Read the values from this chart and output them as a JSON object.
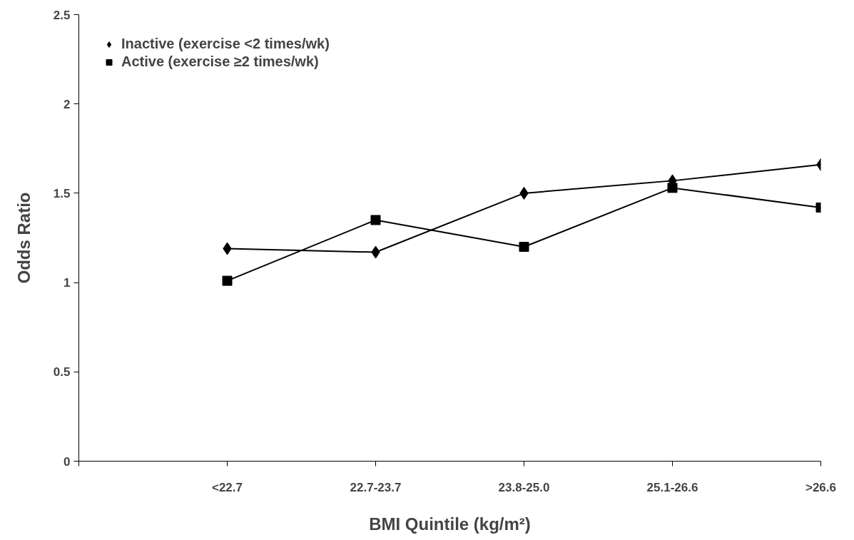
{
  "chart_data": {
    "type": "line",
    "xlabel": "BMI Quintile (kg/m²)",
    "ylabel": "Odds Ratio",
    "categories": [
      "<22.7",
      "22.7-23.7",
      "23.8-25.0",
      "25.1-26.6",
      ">26.6"
    ],
    "series": [
      {
        "name": "Inactive (exercise <2 times/wk)",
        "color": "#000000",
        "marker": "diamond",
        "values": [
          1.19,
          1.17,
          1.5,
          1.57,
          1.66
        ]
      },
      {
        "name": "Active (exercise ≥2 times/wk)",
        "color": "#000000",
        "marker": "square",
        "values": [
          1.01,
          1.35,
          1.2,
          1.53,
          1.42
        ]
      }
    ],
    "ylim": [
      0,
      2.5
    ],
    "yticks": [
      0,
      0.5,
      1,
      1.5,
      2,
      2.5
    ],
    "grid": false,
    "legend": "top left",
    "line_style": "solid"
  }
}
